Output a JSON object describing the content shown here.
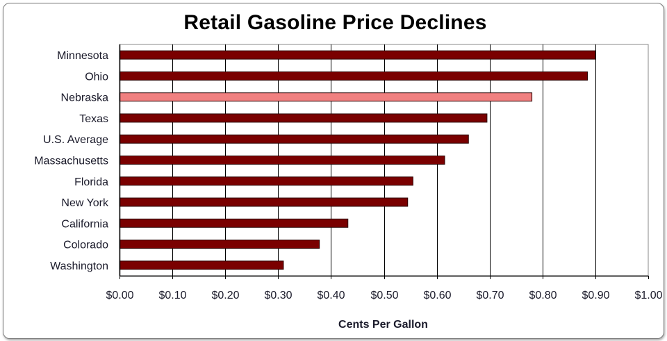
{
  "chart_data": {
    "type": "bar",
    "orientation": "horizontal",
    "title": "Retail Gasoline Price Declines",
    "xlabel": "Cents Per Gallon",
    "ylabel": "",
    "xlim": [
      0,
      1.0
    ],
    "x_ticks": [
      "$0.00",
      "$0.10",
      "$0.20",
      "$0.30",
      "$0.40",
      "$0.50",
      "$0.60",
      "$0.70",
      "$0.80",
      "$0.90",
      "$1.00"
    ],
    "categories": [
      "Minnesota",
      "Ohio",
      "Nebraska",
      "Texas",
      "U.S. Average",
      "Massachusetts",
      "Florida",
      "New York",
      "California",
      "Colorado",
      "Washington"
    ],
    "values": [
      0.9,
      0.885,
      0.78,
      0.695,
      0.66,
      0.615,
      0.555,
      0.545,
      0.432,
      0.378,
      0.31
    ],
    "highlight": "Nebraska",
    "grid": true,
    "legend": "none",
    "colors": {
      "bar": "#7a0000",
      "highlight": "#f08080",
      "grid": "#000000"
    }
  }
}
